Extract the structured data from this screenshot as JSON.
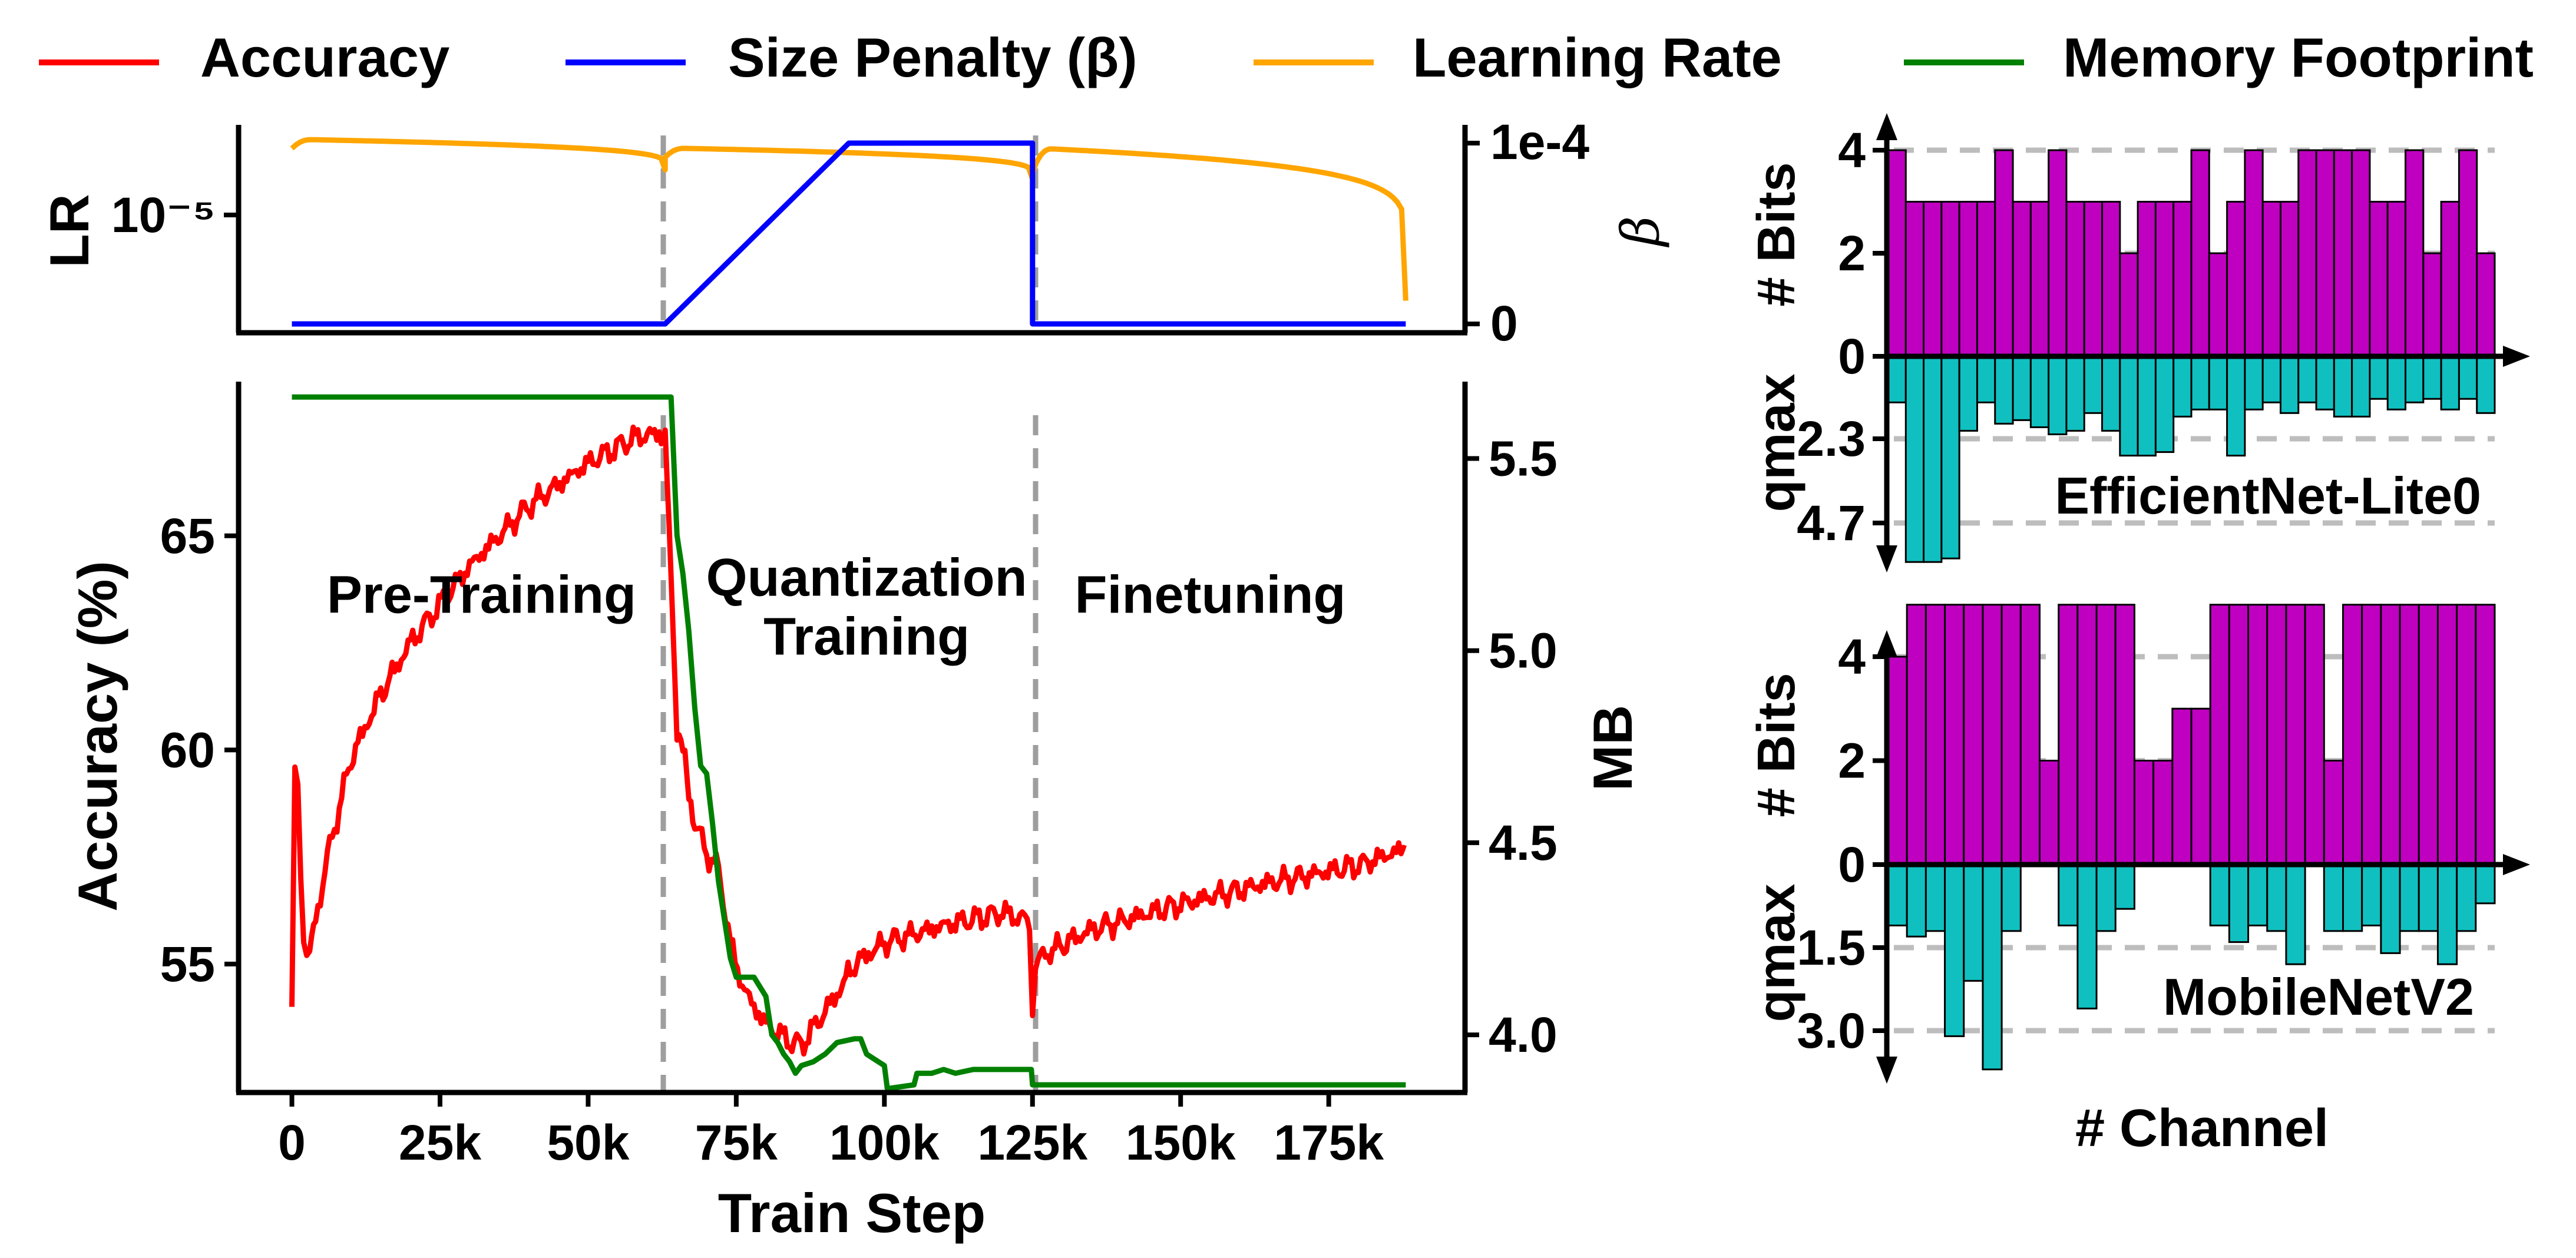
{
  "legend": [
    {
      "label": "Accuracy",
      "color": "#ff0000"
    },
    {
      "label": "Size Penalty (β)",
      "color": "#0000ff"
    },
    {
      "label": "Learning Rate",
      "color": "#ffa500"
    },
    {
      "label": "Memory Footprint",
      "color": "#008000"
    }
  ],
  "chart_data": [
    {
      "id": "lr_beta",
      "type": "line",
      "y_left_label": "LR",
      "y_right_label": "β",
      "y_left_tick": "10⁻⁵",
      "y_right_ticks": [
        "0",
        "1e-4"
      ],
      "x_range": [
        -9000,
        198000
      ],
      "beta_range": [
        0,
        0.0001
      ],
      "phase_boundaries": [
        63000,
        125000
      ],
      "series": [
        {
          "name": "Learning Rate",
          "color": "#ffa500",
          "segments": [
            {
              "start": 0,
              "end": 63000,
              "peak": 1.2e-05,
              "min": 7.5e-06
            },
            {
              "start": 63000,
              "end": 125000,
              "peak": 1.05e-05,
              "min": 6.5e-06
            },
            {
              "start": 125000,
              "end": 188000,
              "peak": 1.05e-05,
              "min": 1e-06
            }
          ]
        },
        {
          "name": "Size Penalty (β)",
          "color": "#0000ff",
          "x": [
            0,
            63000,
            94000,
            125000,
            125000,
            188000
          ],
          "y": [
            0,
            0,
            0.0001,
            0.0001,
            0,
            0
          ]
        }
      ]
    },
    {
      "id": "acc_mem",
      "type": "line",
      "xlabel": "Train Step",
      "ylabel": "Accuracy (%)",
      "y2label": "MB",
      "x_ticks": [
        {
          "v": 0,
          "label": "0"
        },
        {
          "v": 25000,
          "label": "25k"
        },
        {
          "v": 50000,
          "label": "50k"
        },
        {
          "v": 75000,
          "label": "75k"
        },
        {
          "v": 100000,
          "label": "100k"
        },
        {
          "v": 125000,
          "label": "125k"
        },
        {
          "v": 150000,
          "label": "150k"
        },
        {
          "v": 175000,
          "label": "175k"
        }
      ],
      "y_ticks": [
        55,
        60,
        65
      ],
      "y2_ticks": [
        "4.0",
        "4.5",
        "5.0",
        "5.5"
      ],
      "x_range": [
        -9000,
        198000
      ],
      "ylim": [
        52.0,
        68.6
      ],
      "y2lim": [
        3.85,
        5.7
      ],
      "phase_boundaries": [
        63000,
        125000
      ],
      "phases": [
        {
          "label": "Pre-Training",
          "x": 32000,
          "y": 63.2
        },
        {
          "label": "Quantization\nTraining",
          "x": 97000,
          "y": 63.6
        },
        {
          "label": "Finetuning",
          "x": 155000,
          "y": 63.2
        }
      ],
      "series": [
        {
          "name": "Accuracy",
          "color": "#ff0000",
          "x": [
            0,
            500,
            1000,
            1500,
            2000,
            2500,
            3000,
            4000,
            6000,
            10000,
            15000,
            20000,
            30000,
            40000,
            50000,
            58000,
            62000,
            63000,
            64000,
            65000,
            66000,
            67000,
            68000,
            70000,
            72000,
            74000,
            76000,
            78000,
            80000,
            82000,
            84000,
            86000,
            88000,
            90000,
            92000,
            95000,
            100000,
            110000,
            120000,
            124500,
            125000,
            125500,
            128000,
            135000,
            150000,
            165000,
            180000,
            188000
          ],
          "y": [
            54.0,
            59.6,
            59.2,
            57.0,
            55.5,
            55.2,
            55.3,
            56.0,
            57.5,
            59.8,
            61.3,
            62.5,
            64.3,
            65.7,
            66.7,
            67.3,
            67.4,
            67.3,
            64.0,
            60.5,
            60.0,
            59.0,
            58.3,
            57.6,
            57.2,
            55.5,
            54.5,
            54.0,
            53.6,
            53.4,
            53.2,
            53.1,
            53.5,
            53.9,
            54.3,
            55.0,
            55.5,
            55.9,
            56.2,
            56.0,
            54.0,
            55.0,
            55.3,
            55.8,
            56.4,
            56.9,
            57.3,
            57.7
          ]
        },
        {
          "name": "Memory Footprint",
          "color": "#008000",
          "axis": "y2",
          "x": [
            0,
            64000,
            65000,
            66000,
            67000,
            68000,
            69000,
            70000,
            71000,
            72000,
            73000,
            74000,
            75000,
            76000,
            78000,
            80000,
            81000,
            82000,
            83000,
            84000,
            85000,
            86000,
            88000,
            90000,
            92000,
            95000,
            96000,
            97000,
            100000,
            100500,
            105000,
            105500,
            108000,
            110000,
            112000,
            115000,
            120000,
            124800,
            125000,
            188000
          ],
          "y": [
            5.66,
            5.66,
            5.3,
            5.2,
            5.05,
            4.85,
            4.7,
            4.68,
            4.55,
            4.4,
            4.3,
            4.2,
            4.15,
            4.15,
            4.15,
            4.1,
            4.0,
            3.98,
            3.95,
            3.93,
            3.9,
            3.92,
            3.93,
            3.95,
            3.98,
            3.99,
            3.99,
            3.95,
            3.92,
            3.86,
            3.87,
            3.9,
            3.9,
            3.91,
            3.9,
            3.91,
            3.91,
            3.91,
            3.87,
            3.87
          ]
        }
      ]
    },
    {
      "id": "effnet",
      "type": "bar",
      "title": "EfficientNet-Lite0",
      "ylabel_top": "# Bits",
      "ylabel_bottom": "qmax",
      "bits_ticks": [
        "0",
        "2",
        "4"
      ],
      "qmax_ticks": [
        "2.3",
        "4.7"
      ],
      "bits_max": 4.0,
      "qmax_max": 4.7,
      "bits": [
        4,
        3,
        3,
        3,
        3,
        3,
        4,
        3,
        3,
        4,
        3,
        3,
        3,
        2,
        3,
        3,
        3,
        4,
        2,
        3,
        4,
        3,
        3,
        4,
        4,
        4,
        4,
        3,
        3,
        4,
        2,
        3,
        4,
        2
      ],
      "qmax": [
        1.3,
        5.8,
        5.8,
        5.7,
        2.1,
        1.3,
        1.9,
        1.8,
        2.0,
        2.2,
        2.1,
        1.6,
        2.1,
        2.8,
        2.8,
        2.7,
        1.7,
        1.5,
        1.5,
        2.8,
        1.5,
        1.3,
        1.6,
        1.3,
        1.5,
        1.7,
        1.7,
        1.2,
        1.5,
        1.3,
        1.2,
        1.5,
        1.2,
        1.6
      ]
    },
    {
      "id": "mobilenet",
      "type": "bar",
      "title": "MobileNetV2",
      "xlabel": "# Channel",
      "ylabel_top": "# Bits",
      "ylabel_bottom": "qmax",
      "bits_ticks": [
        "0",
        "2",
        "4"
      ],
      "qmax_ticks": [
        "1.5",
        "3.0"
      ],
      "bits_max": 4.0,
      "qmax_max": 3.0,
      "bits": [
        4,
        5,
        5,
        5,
        5,
        5,
        5,
        5,
        2,
        5,
        5,
        5,
        5,
        2,
        2,
        3,
        3,
        5,
        5,
        5,
        5,
        5,
        5,
        2,
        5,
        5,
        5,
        5,
        5,
        5,
        5,
        5
      ],
      "qmax": [
        1.1,
        1.3,
        1.2,
        3.1,
        2.1,
        3.7,
        1.2,
        0.0,
        0.0,
        1.1,
        2.6,
        1.2,
        0.8,
        0.0,
        0.0,
        0.0,
        0.0,
        1.1,
        1.4,
        1.1,
        1.2,
        1.8,
        0.0,
        1.2,
        1.2,
        1.1,
        1.6,
        1.2,
        1.2,
        1.8,
        1.2,
        0.7
      ]
    }
  ]
}
